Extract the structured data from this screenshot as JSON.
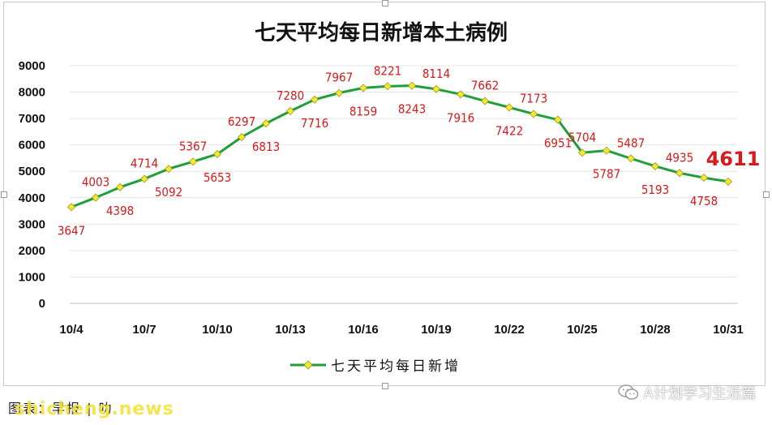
{
  "chart_data": {
    "type": "line",
    "title": "七天平均每日新增本土病例",
    "xlabel": "",
    "ylabel": "",
    "ylim": [
      0,
      9000
    ],
    "yticks": [
      "0",
      "1000",
      "2000",
      "3000",
      "4000",
      "5000",
      "6000",
      "7000",
      "8000",
      "9000"
    ],
    "xtick_labels": [
      "10/4",
      "10/7",
      "10/10",
      "10/13",
      "10/16",
      "10/19",
      "10/22",
      "10/25",
      "10/28",
      "10/31"
    ],
    "x": [
      "10/4",
      "10/5",
      "10/6",
      "10/7",
      "10/8",
      "10/9",
      "10/10",
      "10/11",
      "10/12",
      "10/13",
      "10/14",
      "10/15",
      "10/16",
      "10/17",
      "10/18",
      "10/19",
      "10/20",
      "10/21",
      "10/22",
      "10/23",
      "10/24",
      "10/25",
      "10/26",
      "10/27",
      "10/28",
      "10/29",
      "10/30",
      "10/31"
    ],
    "series": [
      {
        "name": "七天平均每日新增",
        "color": "#1f9e3a",
        "marker_color": "#f2ea2b",
        "values": [
          3647,
          4003,
          4398,
          4714,
          5092,
          5367,
          5653,
          6297,
          6813,
          7280,
          7716,
          7967,
          8159,
          8221,
          8243,
          8114,
          7916,
          7662,
          7422,
          7173,
          6951,
          5704,
          5787,
          5487,
          5193,
          4935,
          4758,
          4611
        ]
      }
    ],
    "data_labels": [
      "3647",
      "4003",
      "4398",
      "4714",
      "5092",
      "5367",
      "5653",
      "6297",
      "6813",
      "7280",
      "7716",
      "7967",
      "8159",
      "8221",
      "8243",
      "8114",
      "7916",
      "7662",
      "7422",
      "7173",
      "6951",
      "5704",
      "5787",
      "5487",
      "5193",
      "4935",
      "4758",
      "4611"
    ],
    "grid": true,
    "legend": "bottom-center",
    "label_color": "#d7191c"
  },
  "footer": {
    "source_text": "图表：早报 |  叻",
    "watermark_site": "shicheng.news",
    "watermark_wechat": "A计划学习生活篇",
    "wechat_icon": "wechat-icon"
  }
}
